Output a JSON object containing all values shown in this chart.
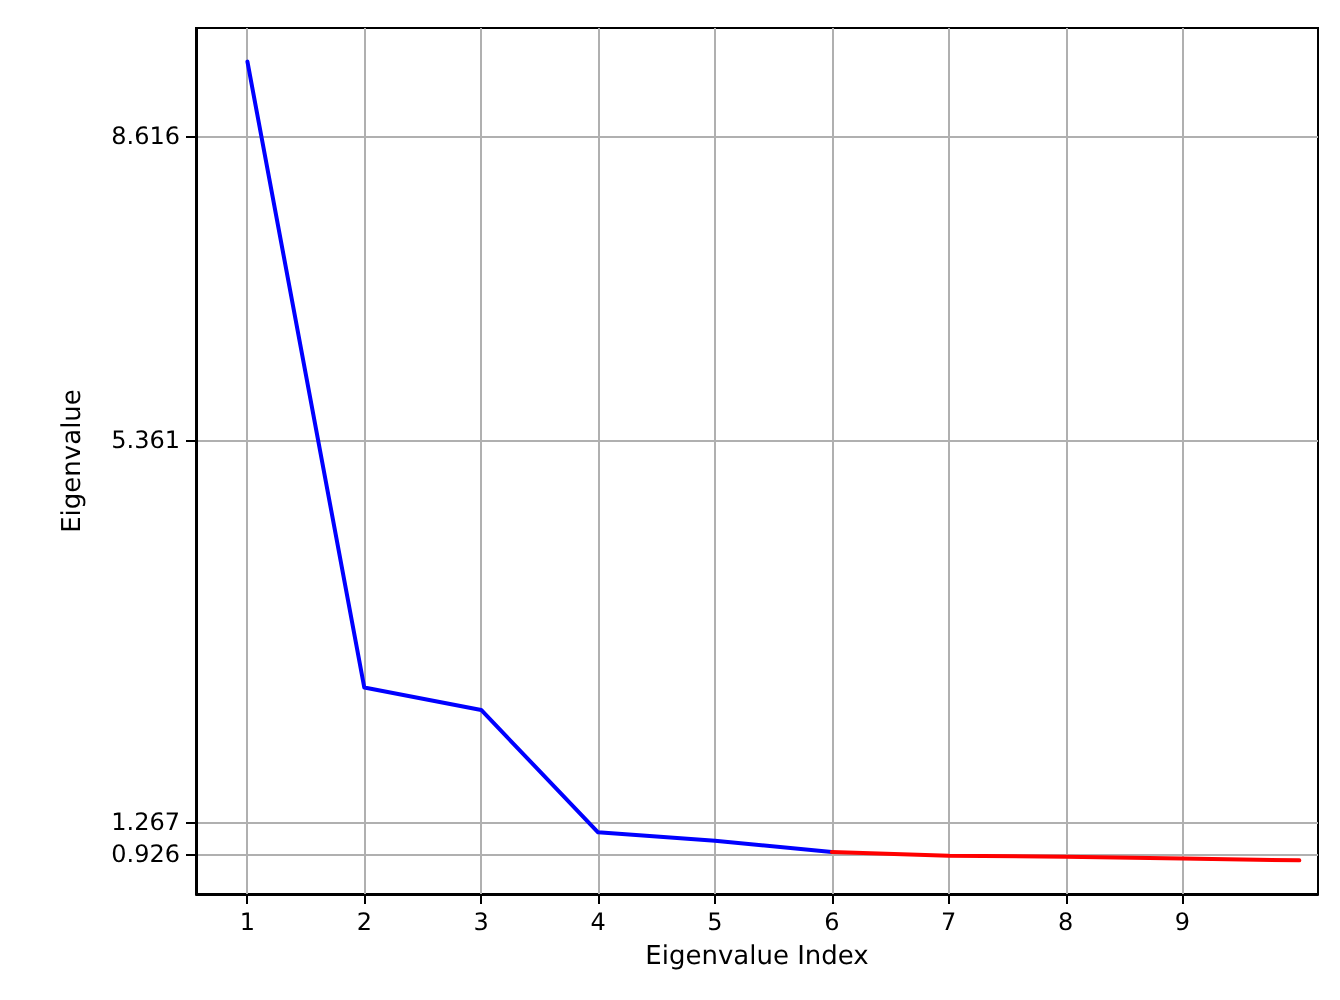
{
  "chart_data": {
    "type": "line",
    "xlabel": "Eigenvalue Index",
    "ylabel": "Eigenvalue",
    "series": [
      {
        "color": "#0000ff",
        "x": [
          1,
          2,
          3,
          4,
          5,
          6
        ],
        "values": [
          9.41,
          2.71,
          2.47,
          1.16,
          1.07,
          0.95
        ]
      },
      {
        "color": "#ff0000",
        "x": [
          6,
          7,
          8,
          9,
          10
        ],
        "values": [
          0.95,
          0.91,
          0.9,
          0.88,
          0.86
        ]
      }
    ],
    "xlim": [
      0.56,
      10.16
    ],
    "ylim": [
      0.5,
      9.77
    ],
    "xticks": [
      1,
      2,
      3,
      4,
      5,
      6,
      7,
      8,
      9
    ],
    "yticks": [
      0.926,
      1.267,
      5.361,
      8.616
    ],
    "grid": true,
    "marker": "none",
    "line_style": "solid"
  }
}
